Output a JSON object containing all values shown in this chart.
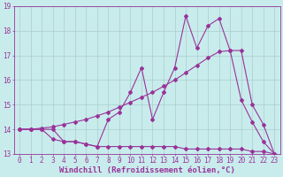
{
  "xlabel": "Windchill (Refroidissement éolien,°C)",
  "background_color": "#c8ecec",
  "line_color": "#993399",
  "grid_color": "#aacccc",
  "xlim": [
    -0.5,
    23.5
  ],
  "ylim": [
    13,
    19
  ],
  "xticks": [
    0,
    1,
    2,
    3,
    4,
    5,
    6,
    7,
    8,
    9,
    10,
    11,
    12,
    13,
    14,
    15,
    16,
    17,
    18,
    19,
    20,
    21,
    22,
    23
  ],
  "yticks": [
    13,
    14,
    15,
    16,
    17,
    18,
    19
  ],
  "series1_x": [
    0,
    1,
    2,
    3,
    4,
    5,
    6,
    7,
    8,
    9,
    10,
    11,
    12,
    13,
    14,
    15,
    16,
    17,
    18,
    19,
    20,
    21,
    22,
    23
  ],
  "series1_y": [
    14.0,
    14.0,
    14.0,
    13.6,
    13.5,
    13.5,
    13.4,
    13.3,
    13.3,
    13.3,
    13.3,
    13.3,
    13.3,
    13.3,
    13.3,
    13.2,
    13.2,
    13.2,
    13.2,
    13.2,
    13.2,
    13.1,
    13.1,
    13.0
  ],
  "series2_x": [
    0,
    1,
    2,
    3,
    4,
    5,
    6,
    7,
    8,
    9,
    10,
    11,
    12,
    13,
    14,
    15,
    16,
    17,
    18,
    19,
    20,
    21,
    22,
    23
  ],
  "series2_y": [
    14.0,
    14.0,
    14.05,
    14.1,
    14.2,
    14.3,
    14.4,
    14.55,
    14.7,
    14.9,
    15.1,
    15.3,
    15.5,
    15.75,
    16.0,
    16.3,
    16.6,
    16.9,
    17.15,
    17.2,
    17.2,
    15.0,
    14.2,
    13.0
  ],
  "series3_x": [
    0,
    1,
    2,
    3,
    4,
    5,
    6,
    7,
    8,
    9,
    10,
    11,
    12,
    13,
    14,
    15,
    16,
    17,
    18,
    19,
    20,
    21,
    22,
    23
  ],
  "series3_y": [
    14.0,
    14.0,
    14.0,
    14.0,
    13.5,
    13.5,
    13.4,
    13.3,
    14.4,
    14.7,
    15.5,
    16.5,
    14.4,
    15.5,
    16.5,
    18.6,
    17.3,
    18.2,
    18.5,
    17.2,
    15.2,
    14.3,
    13.5,
    13.0
  ],
  "tick_fontsize": 5.5,
  "label_fontsize": 6.5,
  "marker_size": 2.0,
  "line_width": 0.8
}
